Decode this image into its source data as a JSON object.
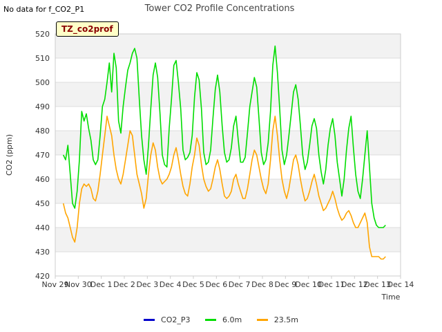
{
  "no_data_label": "No data for f_CO2_P1",
  "site_label": "TZ_co2prof",
  "chart_data": {
    "type": "line",
    "title": "Tower CO2 Profile Concentrations",
    "xlabel": "Time",
    "ylabel": "CO2 (ppm)",
    "ylim": [
      420,
      520
    ],
    "yticks": [
      420,
      430,
      440,
      450,
      460,
      470,
      480,
      490,
      500,
      510,
      520
    ],
    "xlim": [
      0,
      15
    ],
    "xticks": [
      {
        "x": 0,
        "label": "Nov 29"
      },
      {
        "x": 1,
        "label": "Nov 30"
      },
      {
        "x": 2,
        "label": "Dec 1"
      },
      {
        "x": 3,
        "label": "Dec 2"
      },
      {
        "x": 4,
        "label": "Dec 3"
      },
      {
        "x": 5,
        "label": "Dec 4"
      },
      {
        "x": 6,
        "label": "Dec 5"
      },
      {
        "x": 7,
        "label": "Dec 6"
      },
      {
        "x": 8,
        "label": "Dec 7"
      },
      {
        "x": 9,
        "label": "Dec 8"
      },
      {
        "x": 10,
        "label": "Dec 9"
      },
      {
        "x": 11,
        "label": "Dec 10"
      },
      {
        "x": 12,
        "label": "Dec 11"
      },
      {
        "x": 13,
        "label": "Dec 12"
      },
      {
        "x": 14,
        "label": "Dec 13"
      },
      {
        "x": 15,
        "label": "Dec 14"
      }
    ],
    "grid": true,
    "legend_position": "bottom",
    "series": [
      {
        "name": "CO2_P3",
        "color": "#0000cc",
        "x": [],
        "y": []
      },
      {
        "name": "6.0m",
        "color": "#00dd00",
        "x": [
          0.35,
          0.45,
          0.55,
          0.65,
          0.75,
          0.85,
          0.95,
          1.05,
          1.15,
          1.25,
          1.35,
          1.45,
          1.55,
          1.65,
          1.75,
          1.85,
          1.95,
          2.05,
          2.15,
          2.25,
          2.35,
          2.45,
          2.55,
          2.65,
          2.75,
          2.85,
          2.95,
          3.05,
          3.15,
          3.25,
          3.35,
          3.45,
          3.55,
          3.65,
          3.75,
          3.85,
          3.95,
          4.05,
          4.15,
          4.25,
          4.35,
          4.45,
          4.55,
          4.65,
          4.75,
          4.85,
          4.95,
          5.05,
          5.15,
          5.25,
          5.35,
          5.45,
          5.55,
          5.65,
          5.75,
          5.85,
          5.95,
          6.05,
          6.15,
          6.25,
          6.35,
          6.45,
          6.55,
          6.65,
          6.75,
          6.85,
          6.95,
          7.05,
          7.15,
          7.25,
          7.35,
          7.45,
          7.55,
          7.65,
          7.75,
          7.85,
          7.95,
          8.05,
          8.15,
          8.25,
          8.35,
          8.45,
          8.55,
          8.65,
          8.75,
          8.85,
          8.95,
          9.05,
          9.15,
          9.25,
          9.35,
          9.45,
          9.55,
          9.65,
          9.75,
          9.85,
          9.95,
          10.05,
          10.15,
          10.25,
          10.35,
          10.45,
          10.55,
          10.65,
          10.75,
          10.85,
          10.95,
          11.05,
          11.15,
          11.25,
          11.35,
          11.45,
          11.55,
          11.65,
          11.75,
          11.85,
          11.95,
          12.05,
          12.15,
          12.25,
          12.35,
          12.45,
          12.55,
          12.65,
          12.75,
          12.85,
          12.95,
          13.05,
          13.15,
          13.25,
          13.35,
          13.45,
          13.55,
          13.65,
          13.75,
          13.85,
          13.95,
          14.05,
          14.15,
          14.25,
          14.35
        ],
        "y": [
          470,
          468,
          474,
          462,
          450,
          448,
          455,
          468,
          488,
          484,
          487,
          481,
          476,
          468,
          466,
          468,
          478,
          490,
          493,
          500,
          508,
          496,
          512,
          506,
          484,
          479,
          490,
          498,
          505,
          508,
          512,
          514,
          510,
          493,
          478,
          468,
          462,
          474,
          489,
          503,
          508,
          502,
          487,
          470,
          466,
          465,
          481,
          493,
          507,
          509,
          500,
          489,
          472,
          468,
          469,
          471,
          478,
          494,
          504,
          501,
          489,
          471,
          466,
          467,
          472,
          485,
          497,
          503,
          496,
          482,
          471,
          467,
          468,
          473,
          482,
          486,
          476,
          467,
          467,
          469,
          479,
          490,
          496,
          502,
          498,
          485,
          471,
          466,
          468,
          475,
          488,
          507,
          515,
          504,
          489,
          472,
          466,
          470,
          478,
          487,
          496,
          499,
          493,
          482,
          470,
          464,
          467,
          474,
          482,
          485,
          481,
          470,
          463,
          458,
          464,
          474,
          481,
          485,
          478,
          467,
          460,
          453,
          460,
          472,
          481,
          486,
          473,
          462,
          455,
          452,
          460,
          470,
          480,
          465,
          450,
          444,
          441,
          440,
          440,
          440,
          441
        ]
      },
      {
        "name": "23.5m",
        "color": "#ffa500",
        "x": [
          0.35,
          0.45,
          0.55,
          0.65,
          0.75,
          0.85,
          0.95,
          1.05,
          1.15,
          1.25,
          1.35,
          1.45,
          1.55,
          1.65,
          1.75,
          1.85,
          1.95,
          2.05,
          2.15,
          2.25,
          2.35,
          2.45,
          2.55,
          2.65,
          2.75,
          2.85,
          2.95,
          3.05,
          3.15,
          3.25,
          3.35,
          3.45,
          3.55,
          3.65,
          3.75,
          3.85,
          3.95,
          4.05,
          4.15,
          4.25,
          4.35,
          4.45,
          4.55,
          4.65,
          4.75,
          4.85,
          4.95,
          5.05,
          5.15,
          5.25,
          5.35,
          5.45,
          5.55,
          5.65,
          5.75,
          5.85,
          5.95,
          6.05,
          6.15,
          6.25,
          6.35,
          6.45,
          6.55,
          6.65,
          6.75,
          6.85,
          6.95,
          7.05,
          7.15,
          7.25,
          7.35,
          7.45,
          7.55,
          7.65,
          7.75,
          7.85,
          7.95,
          8.05,
          8.15,
          8.25,
          8.35,
          8.45,
          8.55,
          8.65,
          8.75,
          8.85,
          8.95,
          9.05,
          9.15,
          9.25,
          9.35,
          9.45,
          9.55,
          9.65,
          9.75,
          9.85,
          9.95,
          10.05,
          10.15,
          10.25,
          10.35,
          10.45,
          10.55,
          10.65,
          10.75,
          10.85,
          10.95,
          11.05,
          11.15,
          11.25,
          11.35,
          11.45,
          11.55,
          11.65,
          11.75,
          11.85,
          11.95,
          12.05,
          12.15,
          12.25,
          12.35,
          12.45,
          12.55,
          12.65,
          12.75,
          12.85,
          12.95,
          13.05,
          13.15,
          13.25,
          13.35,
          13.45,
          13.55,
          13.65,
          13.75,
          13.85,
          13.95,
          14.05,
          14.15,
          14.25,
          14.35
        ],
        "y": [
          450,
          446,
          444,
          440,
          436,
          434,
          440,
          450,
          456,
          458,
          457,
          458,
          456,
          452,
          451,
          455,
          462,
          470,
          478,
          486,
          482,
          478,
          470,
          464,
          460,
          458,
          462,
          468,
          474,
          480,
          478,
          470,
          462,
          458,
          454,
          448,
          452,
          462,
          470,
          475,
          472,
          465,
          460,
          458,
          459,
          460,
          462,
          465,
          470,
          473,
          468,
          462,
          457,
          454,
          453,
          458,
          465,
          470,
          477,
          474,
          466,
          460,
          457,
          455,
          456,
          460,
          465,
          468,
          464,
          458,
          453,
          452,
          453,
          455,
          460,
          462,
          458,
          455,
          452,
          452,
          456,
          462,
          468,
          472,
          470,
          465,
          460,
          456,
          454,
          458,
          468,
          480,
          486,
          478,
          468,
          460,
          455,
          452,
          456,
          462,
          468,
          470,
          466,
          460,
          455,
          451,
          452,
          455,
          459,
          462,
          458,
          453,
          450,
          447,
          448,
          450,
          452,
          455,
          452,
          448,
          445,
          443,
          444,
          446,
          447,
          445,
          442,
          440,
          440,
          442,
          444,
          446,
          442,
          432,
          428,
          428,
          428,
          428,
          427,
          427,
          428
        ]
      }
    ]
  }
}
